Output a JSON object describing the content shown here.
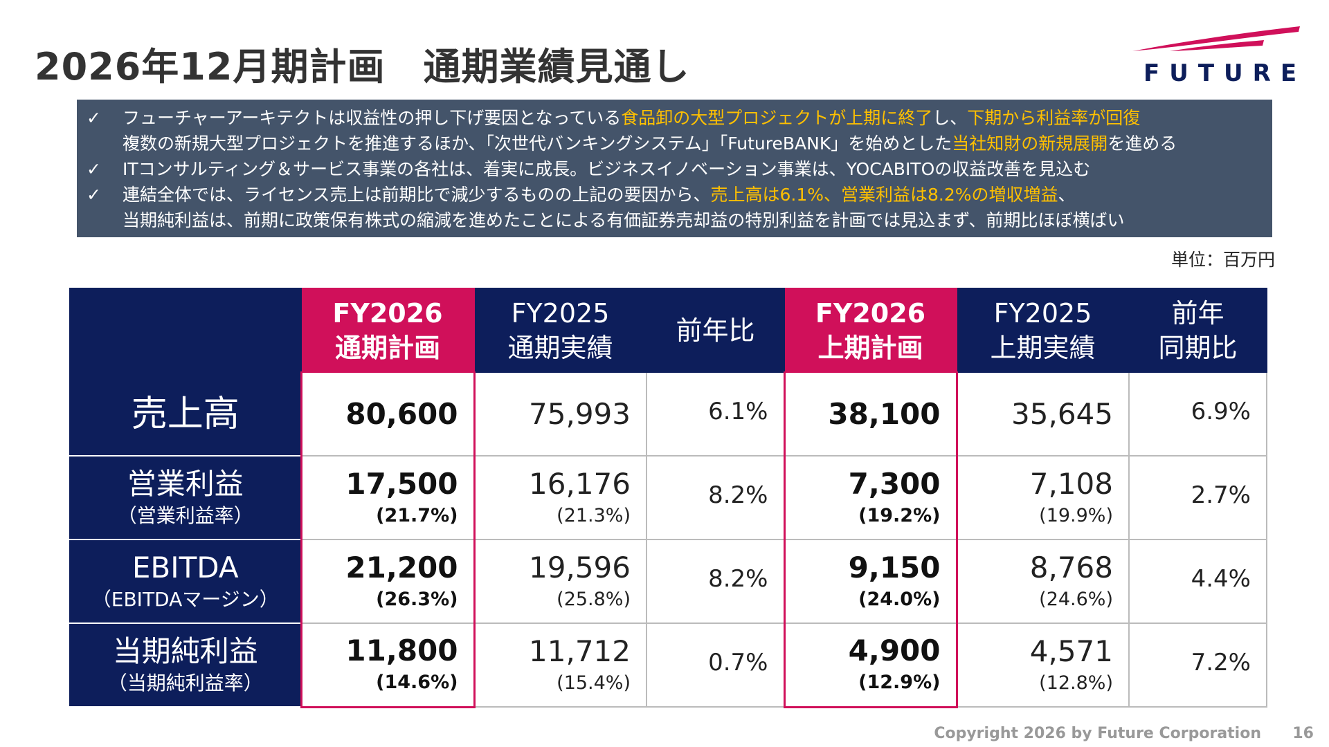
{
  "title": "2026年12月期計画　通期業績見通し",
  "logo": {
    "text": "FUTURE",
    "accent": "#d0105a",
    "navy": "#0d1e5b"
  },
  "summary": {
    "check": "✓",
    "b1": {
      "l1a": "フューチャーアーキテクトは収益性の押し下げ要因となっている",
      "l1b": "食品卸の大型プロジェクトが上期に終了",
      "l1c": "し、",
      "l1d": "下期から利益率が回復",
      "l2a": "複数の新規大型プロジェクトを推進するほか、「次世代バンキングシステム」「FutureBANK」を始めとした",
      "l2b": "当社知財の新規展開",
      "l2c": "を進める"
    },
    "b2": "ITコンサルティング＆サービス事業の各社は、着実に成長。ビジネスイノベーション事業は、YOCABITOの収益改善を見込む",
    "b3": {
      "l1a": "連結全体では、ライセンス売上は前期比で減少するものの上記の要因から、",
      "l1b": "売上高は6.1%、営業利益は8.2%の増収増益",
      "l1c": "、",
      "l2": "当期純利益は、前期に政策保有株式の縮減を進めたことによる有価証券売却益の特別利益を計画では見込まず、前期比ほぼ横ばい"
    }
  },
  "unit": "単位：百万円",
  "table": {
    "headers": [
      [
        "FY2026",
        "通期計画"
      ],
      [
        "FY2025",
        "通期実績"
      ],
      [
        "前年比",
        ""
      ],
      [
        "FY2026",
        "上期計画"
      ],
      [
        "FY2025",
        "上期実績"
      ],
      [
        "前年",
        "同期比"
      ]
    ],
    "rows": [
      {
        "label": "売上高",
        "sub": "",
        "vals": [
          [
            "80,600",
            ""
          ],
          [
            "75,993",
            ""
          ],
          [
            "6.1%",
            ""
          ],
          [
            "38,100",
            ""
          ],
          [
            "35,645",
            ""
          ],
          [
            "6.9%",
            ""
          ]
        ]
      },
      {
        "label": "営業利益",
        "sub": "（営業利益率）",
        "vals": [
          [
            "17,500",
            "(21.7%)"
          ],
          [
            "16,176",
            "(21.3%)"
          ],
          [
            "8.2%",
            ""
          ],
          [
            "7,300",
            "(19.2%)"
          ],
          [
            "7,108",
            "(19.9%)"
          ],
          [
            "2.7%",
            ""
          ]
        ]
      },
      {
        "label": "EBITDA",
        "sub": "（EBITDAマージン）",
        "vals": [
          [
            "21,200",
            "(26.3%)"
          ],
          [
            "19,596",
            "(25.8%)"
          ],
          [
            "8.2%",
            ""
          ],
          [
            "9,150",
            "(24.0%)"
          ],
          [
            "8,768",
            "(24.6%)"
          ],
          [
            "4.4%",
            ""
          ]
        ]
      },
      {
        "label": "当期純利益",
        "sub": "（当期純利益率）",
        "vals": [
          [
            "11,800",
            "(14.6%)"
          ],
          [
            "11,712",
            "(15.4%)"
          ],
          [
            "0.7%",
            ""
          ],
          [
            "4,900",
            "(12.9%)"
          ],
          [
            "4,571",
            "(12.8%)"
          ],
          [
            "7.2%",
            ""
          ]
        ]
      }
    ]
  },
  "footer": "Copyright 2026 by Future  Corporation",
  "page": "16"
}
